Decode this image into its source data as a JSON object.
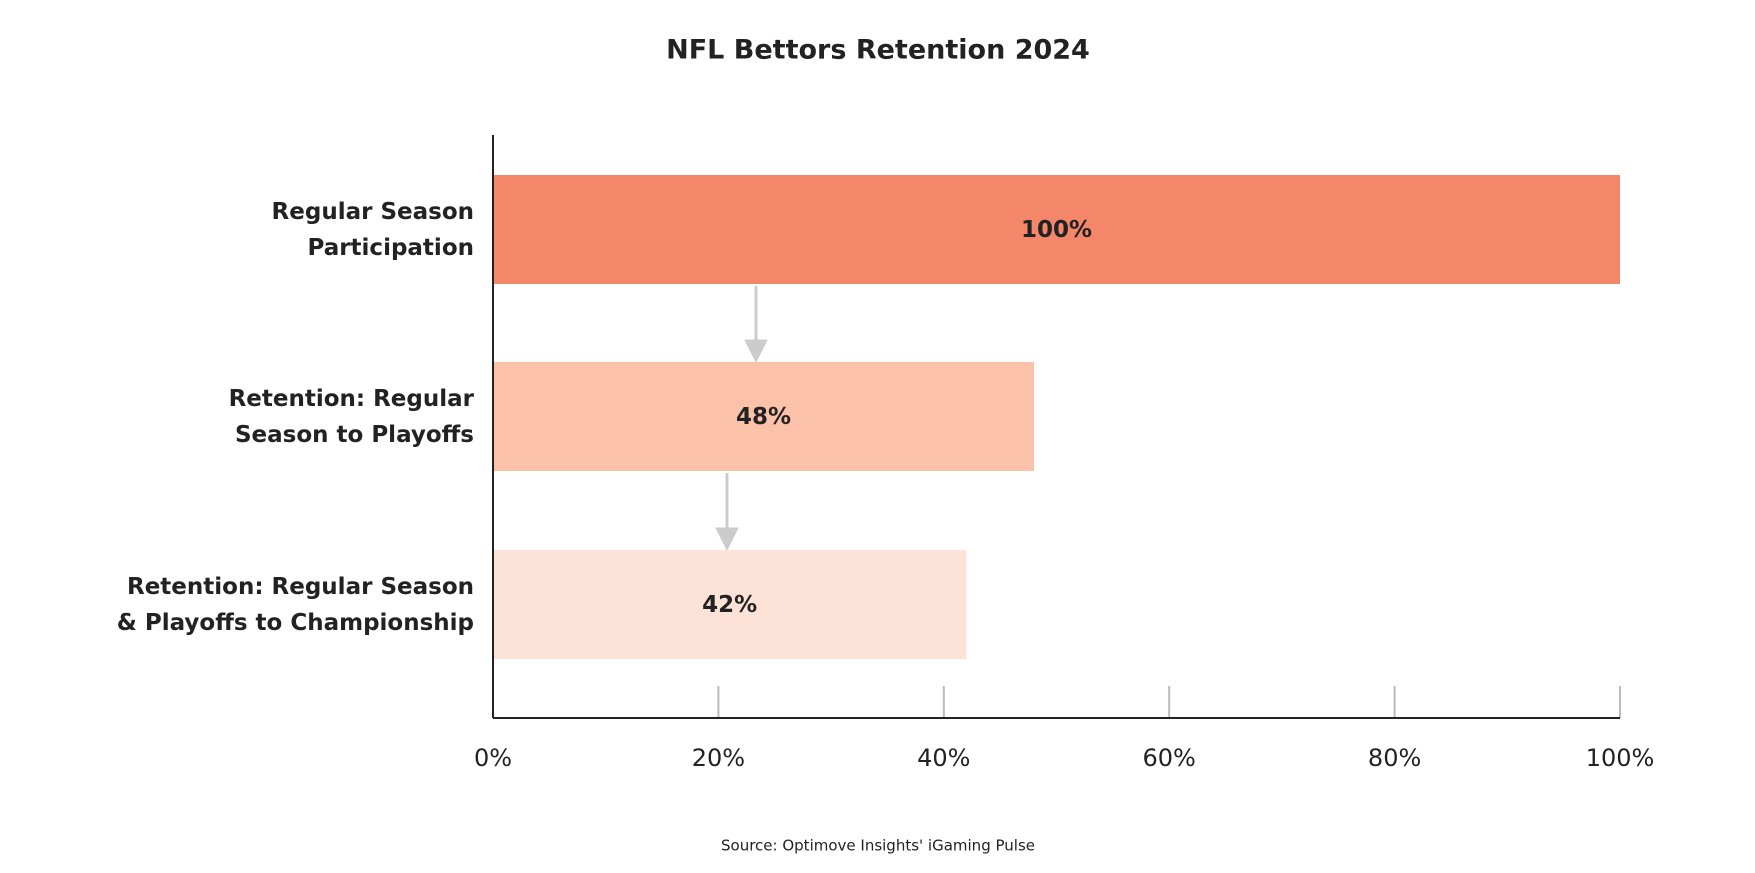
{
  "chart_data": {
    "type": "bar",
    "orientation": "horizontal",
    "title": "NFL Bettors Retention 2024",
    "categories": [
      "Regular Season\nParticipation",
      "Retention: Regular\nSeason to Playoffs",
      "Retention: Regular Season\n& Playoffs to Championship"
    ],
    "values": [
      100,
      48,
      42
    ],
    "value_labels": [
      "100%",
      "48%",
      "42%"
    ],
    "colors": [
      "#f4876a",
      "#fcc1a9",
      "#fde2d8"
    ],
    "xlim": [
      0,
      100
    ],
    "xticks": [
      {
        "value": 0,
        "label": "0%"
      },
      {
        "value": 20,
        "label": "20%"
      },
      {
        "value": 40,
        "label": "40%"
      },
      {
        "value": 60,
        "label": "60%"
      },
      {
        "value": 80,
        "label": "80%"
      },
      {
        "value": 100,
        "label": "100%"
      }
    ],
    "source": "Source: Optimove Insights' iGaming Pulse"
  }
}
